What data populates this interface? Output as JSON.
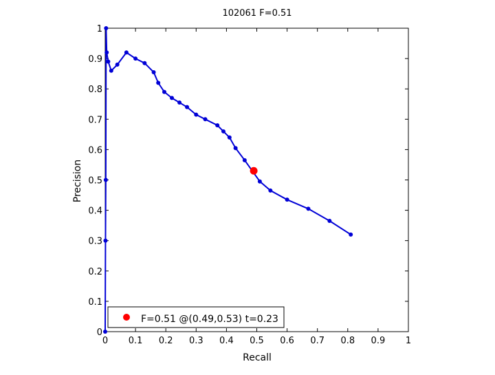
{
  "chart_data": {
    "type": "line",
    "title": "102061 F=0.51",
    "xlabel": "Recall",
    "ylabel": "Precision",
    "xlim": [
      0,
      1
    ],
    "ylim": [
      0,
      1
    ],
    "grid": true,
    "x_ticks": [
      "0",
      "0.1",
      "0.2",
      "0.3",
      "0.4",
      "0.5",
      "0.6",
      "0.7",
      "0.8",
      "0.9",
      "1"
    ],
    "y_ticks": [
      "0",
      "0.1",
      "0.2",
      "0.3",
      "0.4",
      "0.5",
      "0.6",
      "0.7",
      "0.8",
      "0.9",
      "1"
    ],
    "series": [
      {
        "color": "#0000d6",
        "x": [
          0.81,
          0.74,
          0.67,
          0.6,
          0.545,
          0.51,
          0.46,
          0.43,
          0.41,
          0.39,
          0.37,
          0.33,
          0.3,
          0.27,
          0.245,
          0.22,
          0.195,
          0.175,
          0.16,
          0.13,
          0.1,
          0.07,
          0.04,
          0.02,
          0.01,
          0.005,
          0.003,
          0.002,
          0.001,
          0.0
        ],
        "y": [
          0.32,
          0.365,
          0.405,
          0.435,
          0.465,
          0.495,
          0.565,
          0.605,
          0.64,
          0.66,
          0.68,
          0.7,
          0.715,
          0.74,
          0.755,
          0.77,
          0.79,
          0.82,
          0.855,
          0.885,
          0.9,
          0.92,
          0.88,
          0.86,
          0.89,
          0.92,
          1.0,
          0.5,
          0.3,
          0.0
        ]
      }
    ],
    "highlight_point": {
      "x": 0.49,
      "y": 0.53,
      "color": "#ff0000"
    },
    "legend": {
      "position": "bottom-left",
      "label": "F=0.51 @(0.49,0.53) t=0.23"
    }
  }
}
